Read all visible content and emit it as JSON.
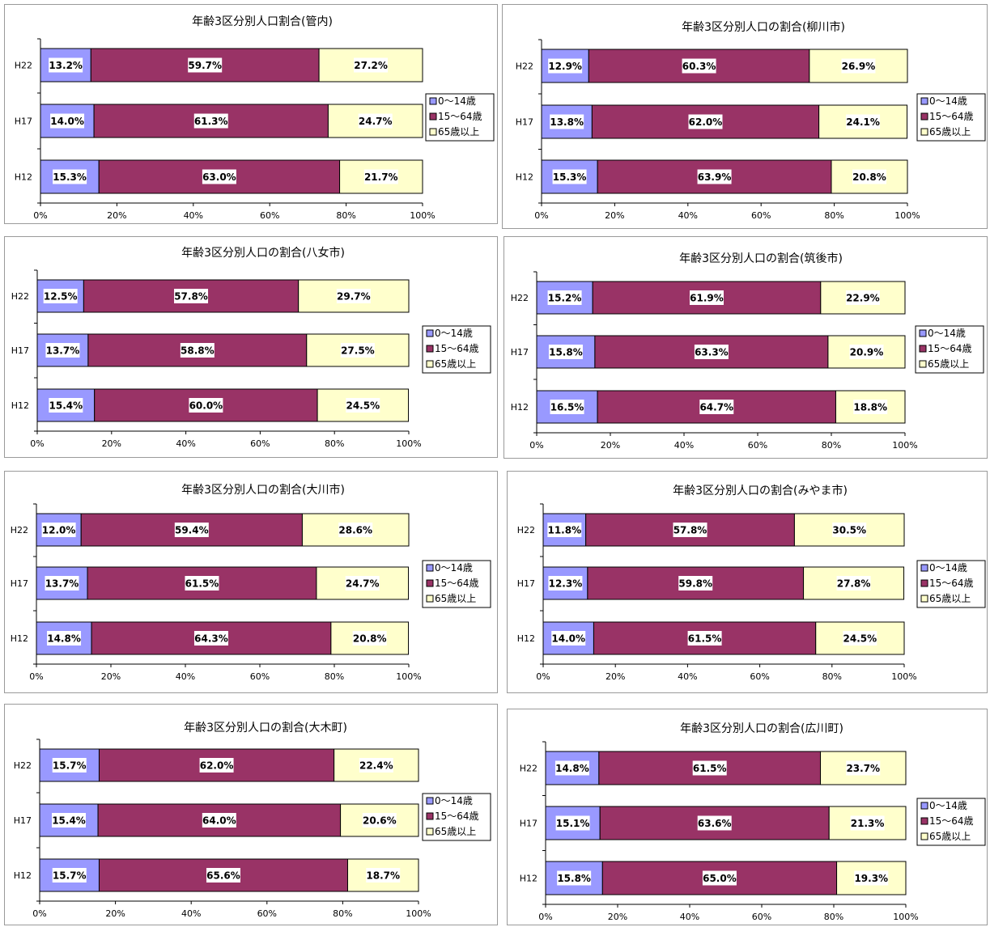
{
  "series_names": [
    "0～14歳",
    "15～64歳",
    "65歳以上"
  ],
  "colors": {
    "s0": "#9999ff",
    "s1": "#993366",
    "s2": "#ffffcc"
  },
  "x_ticks": [
    "0%",
    "20%",
    "40%",
    "60%",
    "80%",
    "100%"
  ],
  "chart_data": [
    {
      "type": "bar",
      "title": "年齢3区分別人口割合(管内)",
      "categories": [
        "H22",
        "H17",
        "H12"
      ],
      "series": [
        {
          "name": "0～14歳",
          "values": [
            13.2,
            14.0,
            15.3
          ],
          "labels": [
            "13.2%",
            "14.0%",
            "15.3%"
          ]
        },
        {
          "name": "15～64歳",
          "values": [
            59.7,
            61.3,
            63.0
          ],
          "labels": [
            "59.7%",
            "61.3%",
            "63.0%"
          ]
        },
        {
          "name": "65歳以上",
          "values": [
            27.2,
            24.7,
            21.7
          ],
          "labels": [
            "27.2%",
            "24.7%",
            "21.7%"
          ]
        }
      ],
      "xlim": [
        0,
        100
      ],
      "stacked": true,
      "orientation": "horizontal",
      "legend": "right"
    },
    {
      "type": "bar",
      "title": "年齢3区分別人口の割合(柳川市)",
      "categories": [
        "H22",
        "H17",
        "H12"
      ],
      "series": [
        {
          "name": "0～14歳",
          "values": [
            12.9,
            13.8,
            15.3
          ],
          "labels": [
            "12.9%",
            "13.8%",
            "15.3%"
          ]
        },
        {
          "name": "15～64歳",
          "values": [
            60.3,
            62.0,
            63.9
          ],
          "labels": [
            "60.3%",
            "62.0%",
            "63.9%"
          ]
        },
        {
          "name": "65歳以上",
          "values": [
            26.9,
            24.1,
            20.8
          ],
          "labels": [
            "26.9%",
            "24.1%",
            "20.8%"
          ]
        }
      ],
      "xlim": [
        0,
        100
      ],
      "stacked": true,
      "orientation": "horizontal",
      "legend": "right"
    },
    {
      "type": "bar",
      "title": "年齢3区分別人口の割合(八女市)",
      "categories": [
        "H22",
        "H17",
        "H12"
      ],
      "series": [
        {
          "name": "0～14歳",
          "values": [
            12.5,
            13.7,
            15.4
          ],
          "labels": [
            "12.5%",
            "13.7%",
            "15.4%"
          ]
        },
        {
          "name": "15～64歳",
          "values": [
            57.8,
            58.8,
            60.0
          ],
          "labels": [
            "57.8%",
            "58.8%",
            "60.0%"
          ]
        },
        {
          "name": "65歳以上",
          "values": [
            29.7,
            27.5,
            24.5
          ],
          "labels": [
            "29.7%",
            "27.5%",
            "24.5%"
          ]
        }
      ],
      "xlim": [
        0,
        100
      ],
      "stacked": true,
      "orientation": "horizontal",
      "legend": "right"
    },
    {
      "type": "bar",
      "title": "年齢3区分別人口の割合(筑後市)",
      "categories": [
        "H22",
        "H17",
        "H12"
      ],
      "series": [
        {
          "name": "0～14歳",
          "values": [
            15.2,
            15.8,
            16.5
          ],
          "labels": [
            "15.2%",
            "15.8%",
            "16.5%"
          ]
        },
        {
          "name": "15～64歳",
          "values": [
            61.9,
            63.3,
            64.7
          ],
          "labels": [
            "61.9%",
            "63.3%",
            "64.7%"
          ]
        },
        {
          "name": "65歳以上",
          "values": [
            22.9,
            20.9,
            18.8
          ],
          "labels": [
            "22.9%",
            "20.9%",
            "18.8%"
          ]
        }
      ],
      "xlim": [
        0,
        100
      ],
      "stacked": true,
      "orientation": "horizontal",
      "legend": "right"
    },
    {
      "type": "bar",
      "title": "年齢3区分別人口の割合(大川市)",
      "categories": [
        "H22",
        "H17",
        "H12"
      ],
      "series": [
        {
          "name": "0～14歳",
          "values": [
            12.0,
            13.7,
            14.8
          ],
          "labels": [
            "12.0%",
            "13.7%",
            "14.8%"
          ]
        },
        {
          "name": "15～64歳",
          "values": [
            59.4,
            61.5,
            64.3
          ],
          "labels": [
            "59.4%",
            "61.5%",
            "64.3%"
          ]
        },
        {
          "name": "65歳以上",
          "values": [
            28.6,
            24.7,
            20.8
          ],
          "labels": [
            "28.6%",
            "24.7%",
            "20.8%"
          ]
        }
      ],
      "xlim": [
        0,
        100
      ],
      "stacked": true,
      "orientation": "horizontal",
      "legend": "right"
    },
    {
      "type": "bar",
      "title": "年齢3区分別人口の割合(みやま市)",
      "categories": [
        "H22",
        "H17",
        "H12"
      ],
      "series": [
        {
          "name": "0～14歳",
          "values": [
            11.8,
            12.3,
            14.0
          ],
          "labels": [
            "11.8%",
            "12.3%",
            "14.0%"
          ]
        },
        {
          "name": "15～64歳",
          "values": [
            57.8,
            59.8,
            61.5
          ],
          "labels": [
            "57.8%",
            "59.8%",
            "61.5%"
          ]
        },
        {
          "name": "65歳以上",
          "values": [
            30.5,
            27.8,
            24.5
          ],
          "labels": [
            "30.5%",
            "27.8%",
            "24.5%"
          ]
        }
      ],
      "xlim": [
        0,
        100
      ],
      "stacked": true,
      "orientation": "horizontal",
      "legend": "right"
    },
    {
      "type": "bar",
      "title": "年齢3区分別人口の割合(大木町)",
      "categories": [
        "H22",
        "H17",
        "H12"
      ],
      "series": [
        {
          "name": "0～14歳",
          "values": [
            15.7,
            15.4,
            15.7
          ],
          "labels": [
            "15.7%",
            "15.4%",
            "15.7%"
          ]
        },
        {
          "name": "15～64歳",
          "values": [
            62.0,
            64.0,
            65.6
          ],
          "labels": [
            "62.0%",
            "64.0%",
            "65.6%"
          ]
        },
        {
          "name": "65歳以上",
          "values": [
            22.4,
            20.6,
            18.7
          ],
          "labels": [
            "22.4%",
            "20.6%",
            "18.7%"
          ]
        }
      ],
      "xlim": [
        0,
        100
      ],
      "stacked": true,
      "orientation": "horizontal",
      "legend": "right"
    },
    {
      "type": "bar",
      "title": "年齢3区分別人口の割合(広川町)",
      "categories": [
        "H22",
        "H17",
        "H12"
      ],
      "series": [
        {
          "name": "0～14歳",
          "values": [
            14.8,
            15.1,
            15.8
          ],
          "labels": [
            "14.8%",
            "15.1%",
            "15.8%"
          ]
        },
        {
          "name": "15～64歳",
          "values": [
            61.5,
            63.6,
            65.0
          ],
          "labels": [
            "61.5%",
            "63.6%",
            "65.0%"
          ]
        },
        {
          "name": "65歳以上",
          "values": [
            23.7,
            21.3,
            19.3
          ],
          "labels": [
            "23.7%",
            "21.3%",
            "19.3%"
          ]
        }
      ],
      "xlim": [
        0,
        100
      ],
      "stacked": true,
      "orientation": "horizontal",
      "legend": "right"
    }
  ]
}
